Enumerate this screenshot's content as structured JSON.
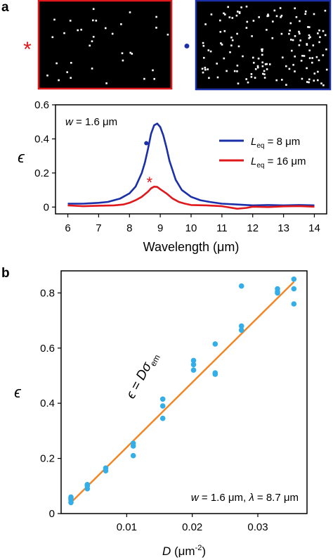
{
  "panels": {
    "a_label": "a",
    "b_label": "b",
    "left_marker": "*",
    "right_marker": "●"
  },
  "chart_data": [
    {
      "type": "line",
      "panel": "a",
      "xlabel": "Wavelength (μm)",
      "ylabel": "ϵ",
      "xlim": [
        5.6,
        14.4
      ],
      "ylim": [
        -0.04,
        0.6
      ],
      "xticks": [
        6,
        7,
        8,
        9,
        10,
        11,
        12,
        13,
        14
      ],
      "yticks": [
        0,
        0.2,
        0.4,
        0.6
      ],
      "ytick_labels": [
        "0",
        "0.2",
        "0.4",
        "0.6"
      ],
      "annotation": {
        "var": "w",
        "rest": " = 1.6 μm"
      },
      "legend_position": "right",
      "colors": {
        "blue": "#1a2fa8",
        "red": "#e0181c"
      },
      "series": [
        {
          "legend_main": "L",
          "legend_sub": "eq",
          "legend_rest": " = 8 μm",
          "color": "#1a2fa8",
          "marker": "●",
          "x": [
            6.0,
            6.5,
            7.0,
            7.3,
            7.5,
            7.7,
            8.0,
            8.2,
            8.4,
            8.5,
            8.6,
            8.7,
            8.8,
            8.9,
            9.0,
            9.1,
            9.2,
            9.3,
            9.5,
            9.7,
            10.0,
            10.3,
            10.6,
            11.0,
            11.5,
            12.0,
            12.5,
            13.0,
            13.5,
            14.0
          ],
          "y": [
            0.02,
            0.02,
            0.025,
            0.03,
            0.04,
            0.05,
            0.08,
            0.12,
            0.2,
            0.26,
            0.34,
            0.43,
            0.48,
            0.49,
            0.47,
            0.42,
            0.35,
            0.27,
            0.16,
            0.1,
            0.06,
            0.04,
            0.03,
            0.02,
            0.015,
            0.01,
            0.012,
            0.01,
            0.012,
            0.01
          ],
          "marker_at": [
            8.55,
            0.38
          ]
        },
        {
          "legend_main": "L",
          "legend_sub": "eq",
          "legend_rest": " = 16 μm",
          "color": "#e0181c",
          "marker": "*",
          "x": [
            6.0,
            6.5,
            7.0,
            7.5,
            7.8,
            8.0,
            8.2,
            8.4,
            8.6,
            8.7,
            8.8,
            8.9,
            9.0,
            9.2,
            9.4,
            9.6,
            9.8,
            10.0,
            10.5,
            11.0,
            11.5,
            11.8,
            12.0,
            12.5,
            13.0,
            13.5,
            14.0
          ],
          "y": [
            0.01,
            0.005,
            0.008,
            0.01,
            0.015,
            0.025,
            0.04,
            0.06,
            0.09,
            0.11,
            0.12,
            0.118,
            0.105,
            0.08,
            0.05,
            0.03,
            0.02,
            0.012,
            0.01,
            0.005,
            -0.01,
            -0.005,
            0.002,
            0.0,
            0.004,
            0.006,
            0.002
          ],
          "marker_at": [
            8.65,
            0.155
          ]
        }
      ]
    },
    {
      "type": "scatter",
      "panel": "b",
      "xlabel_main": "D",
      "xlabel_rest": " (μm",
      "xlabel_sup": "-2",
      "xlabel_close": ")",
      "ylabel": "ϵ",
      "xlim": [
        0.0,
        0.0375
      ],
      "ylim": [
        0.0,
        0.88
      ],
      "xticks": [
        0.01,
        0.02,
        0.03
      ],
      "xtick_labels": [
        "0.01",
        "0.02",
        "0.03"
      ],
      "yticks": [
        0,
        0.2,
        0.4,
        0.6,
        0.8
      ],
      "ytick_labels": [
        "0",
        "0.2",
        "0.4",
        "0.6",
        "0.8"
      ],
      "annotation_parts": [
        "w",
        " = 1.6 μm, ",
        "λ",
        " = 8.7 μm"
      ],
      "fit_label_parts": {
        "lhs": "ϵ = Dσ",
        "sub": "em"
      },
      "colors": {
        "points": "#33aee8",
        "fit": "#f5831f"
      },
      "fit_line": {
        "x": [
          0.0015,
          0.0355
        ],
        "y": [
          0.04,
          0.84
        ]
      },
      "points": [
        [
          0.0015,
          0.04
        ],
        [
          0.0015,
          0.05
        ],
        [
          0.0015,
          0.055
        ],
        [
          0.0015,
          0.06
        ],
        [
          0.004,
          0.09
        ],
        [
          0.004,
          0.1
        ],
        [
          0.004,
          0.105
        ],
        [
          0.0068,
          0.155
        ],
        [
          0.0068,
          0.165
        ],
        [
          0.011,
          0.21
        ],
        [
          0.011,
          0.245
        ],
        [
          0.011,
          0.255
        ],
        [
          0.0155,
          0.345
        ],
        [
          0.0155,
          0.39
        ],
        [
          0.0155,
          0.415
        ],
        [
          0.0202,
          0.52
        ],
        [
          0.0202,
          0.54
        ],
        [
          0.0202,
          0.555
        ],
        [
          0.0235,
          0.505
        ],
        [
          0.0235,
          0.51
        ],
        [
          0.0235,
          0.615
        ],
        [
          0.0275,
          0.665
        ],
        [
          0.0275,
          0.68
        ],
        [
          0.0275,
          0.825
        ],
        [
          0.033,
          0.8
        ],
        [
          0.033,
          0.805
        ],
        [
          0.033,
          0.815
        ],
        [
          0.0355,
          0.76
        ],
        [
          0.0355,
          0.815
        ],
        [
          0.0355,
          0.85
        ]
      ]
    }
  ]
}
